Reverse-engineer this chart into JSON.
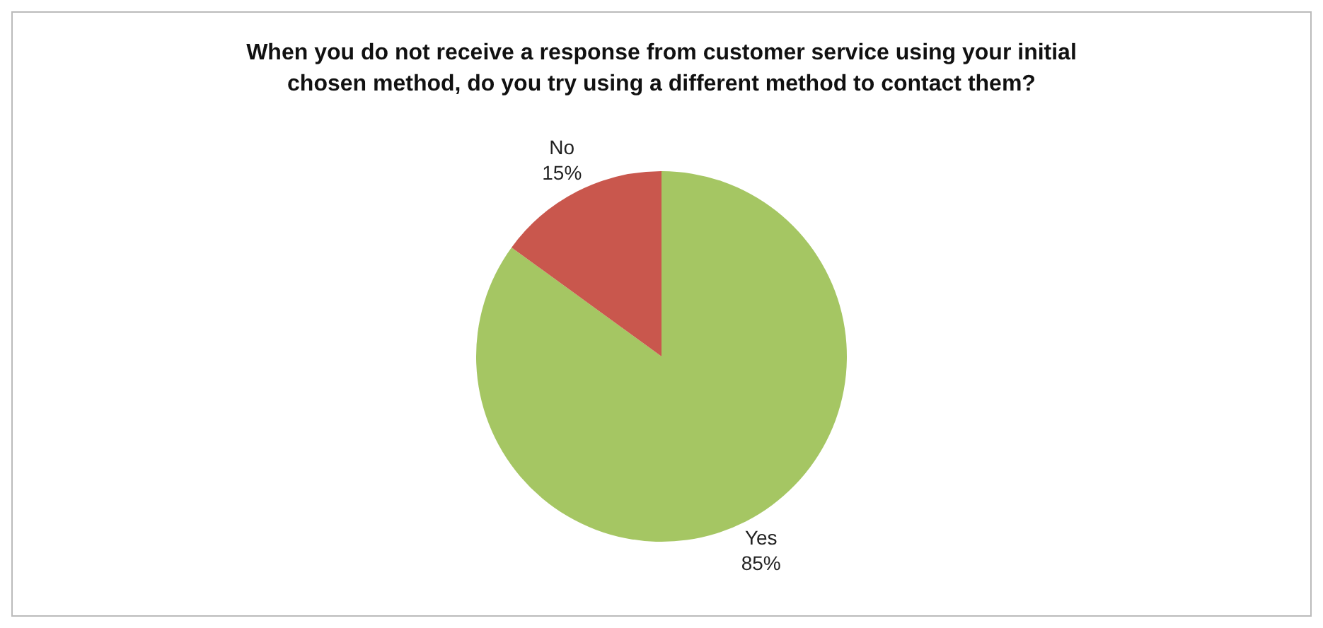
{
  "chart_data": {
    "type": "pie",
    "title": "When you do not receive a response from customer service using your initial chosen method, do you try using a different method to contact them?",
    "categories": [
      "Yes",
      "No"
    ],
    "values": [
      85,
      15
    ],
    "colors": [
      "#a5c663",
      "#c9574d"
    ],
    "value_labels": [
      "85%",
      "15%"
    ],
    "legend": false
  }
}
